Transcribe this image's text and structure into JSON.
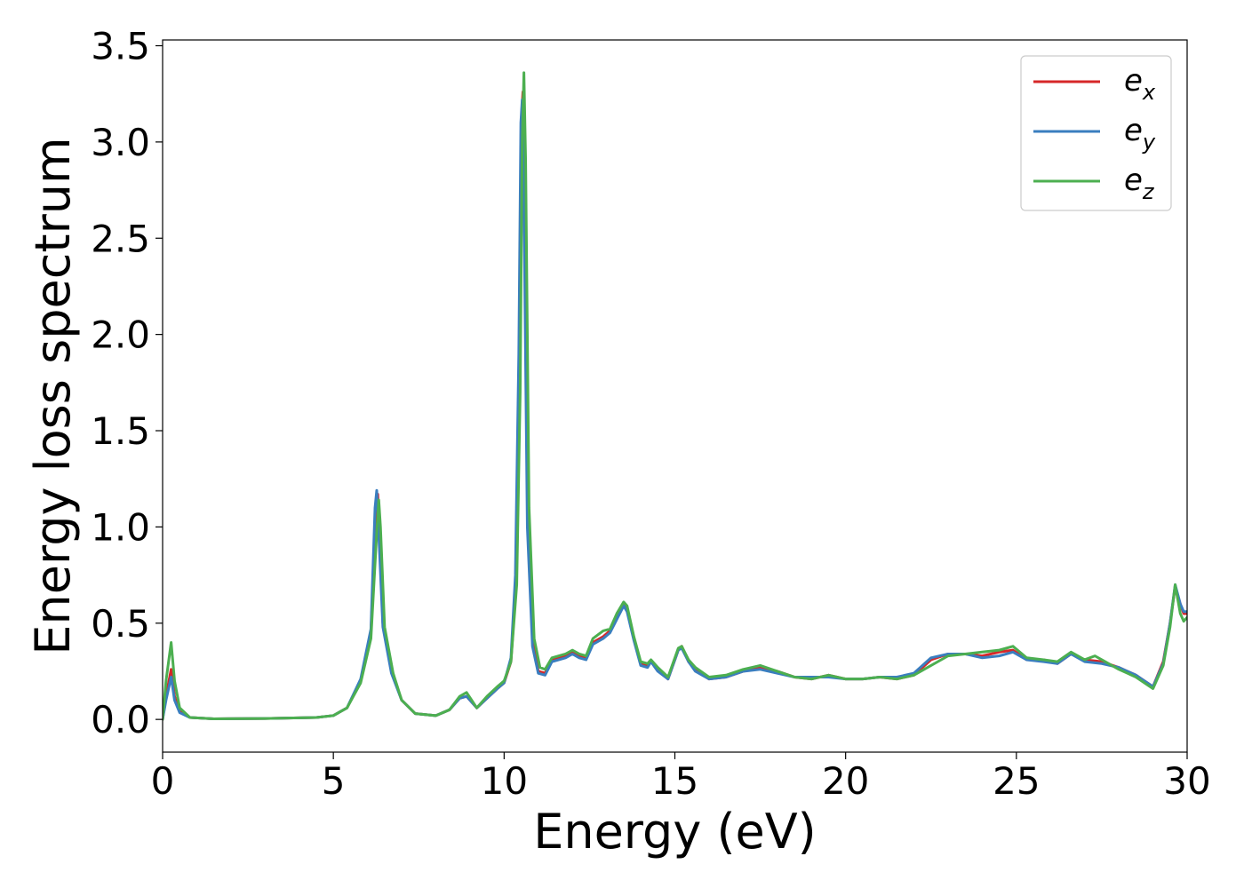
{
  "chart_data": {
    "type": "line",
    "title": "",
    "xlabel": "Energy (eV)",
    "ylabel": "Energy loss spectrum",
    "xlim": [
      0,
      30
    ],
    "ylim": [
      -0.17,
      3.53
    ],
    "xticks": [
      0,
      5,
      10,
      15,
      20,
      25,
      30
    ],
    "xtick_labels": [
      "0",
      "5",
      "10",
      "15",
      "20",
      "25",
      "30"
    ],
    "yticks": [
      0.0,
      0.5,
      1.0,
      1.5,
      2.0,
      2.5,
      3.0,
      3.5
    ],
    "ytick_labels": [
      "0.0",
      "0.5",
      "1.0",
      "1.5",
      "2.0",
      "2.5",
      "3.0",
      "3.5"
    ],
    "grid": false,
    "legend_position": "top-right",
    "series": [
      {
        "name": "e_x",
        "label_base": "e",
        "label_sub": "x",
        "color": "#d62728",
        "points": [
          [
            0,
            0
          ],
          [
            0.1,
            0.12
          ],
          [
            0.25,
            0.26
          ],
          [
            0.35,
            0.12
          ],
          [
            0.5,
            0.04
          ],
          [
            0.8,
            0.01
          ],
          [
            1.5,
            0.003
          ],
          [
            3,
            0.005
          ],
          [
            4.5,
            0.01
          ],
          [
            5.0,
            0.02
          ],
          [
            5.4,
            0.06
          ],
          [
            5.8,
            0.2
          ],
          [
            6.1,
            0.45
          ],
          [
            6.25,
            1.1
          ],
          [
            6.3,
            1.17
          ],
          [
            6.35,
            1.0
          ],
          [
            6.45,
            0.5
          ],
          [
            6.7,
            0.25
          ],
          [
            7.0,
            0.1
          ],
          [
            7.4,
            0.03
          ],
          [
            8.0,
            0.02
          ],
          [
            8.4,
            0.05
          ],
          [
            8.7,
            0.11
          ],
          [
            8.9,
            0.12
          ],
          [
            9.05,
            0.09
          ],
          [
            9.2,
            0.06
          ],
          [
            9.5,
            0.11
          ],
          [
            9.8,
            0.16
          ],
          [
            10.0,
            0.19
          ],
          [
            10.2,
            0.3
          ],
          [
            10.35,
            0.7
          ],
          [
            10.45,
            1.8
          ],
          [
            10.5,
            3.1
          ],
          [
            10.55,
            3.26
          ],
          [
            10.6,
            2.8
          ],
          [
            10.7,
            1.0
          ],
          [
            10.85,
            0.4
          ],
          [
            11.0,
            0.25
          ],
          [
            11.2,
            0.24
          ],
          [
            11.4,
            0.31
          ],
          [
            11.8,
            0.33
          ],
          [
            12.0,
            0.35
          ],
          [
            12.2,
            0.33
          ],
          [
            12.4,
            0.32
          ],
          [
            12.6,
            0.4
          ],
          [
            12.9,
            0.43
          ],
          [
            13.1,
            0.46
          ],
          [
            13.3,
            0.53
          ],
          [
            13.5,
            0.6
          ],
          [
            13.6,
            0.58
          ],
          [
            13.8,
            0.42
          ],
          [
            14.0,
            0.29
          ],
          [
            14.2,
            0.28
          ],
          [
            14.3,
            0.3
          ],
          [
            14.5,
            0.26
          ],
          [
            14.8,
            0.21
          ],
          [
            15.1,
            0.36
          ],
          [
            15.2,
            0.38
          ],
          [
            15.4,
            0.3
          ],
          [
            15.6,
            0.26
          ],
          [
            16.0,
            0.21
          ],
          [
            16.5,
            0.22
          ],
          [
            17.0,
            0.25
          ],
          [
            17.5,
            0.27
          ],
          [
            18.0,
            0.25
          ],
          [
            18.5,
            0.22
          ],
          [
            19.0,
            0.21
          ],
          [
            19.5,
            0.23
          ],
          [
            20.0,
            0.21
          ],
          [
            20.5,
            0.21
          ],
          [
            21.0,
            0.22
          ],
          [
            21.5,
            0.21
          ],
          [
            22.0,
            0.23
          ],
          [
            22.5,
            0.31
          ],
          [
            23.0,
            0.34
          ],
          [
            23.5,
            0.34
          ],
          [
            24.0,
            0.33
          ],
          [
            24.5,
            0.35
          ],
          [
            24.9,
            0.36
          ],
          [
            25.3,
            0.31
          ],
          [
            25.8,
            0.31
          ],
          [
            26.2,
            0.29
          ],
          [
            26.6,
            0.34
          ],
          [
            27.0,
            0.31
          ],
          [
            27.5,
            0.3
          ],
          [
            28.0,
            0.27
          ],
          [
            28.5,
            0.23
          ],
          [
            29.0,
            0.17
          ],
          [
            29.3,
            0.3
          ],
          [
            29.5,
            0.5
          ],
          [
            29.65,
            0.69
          ],
          [
            29.8,
            0.6
          ],
          [
            29.9,
            0.55
          ],
          [
            30.0,
            0.55
          ]
        ]
      },
      {
        "name": "e_y",
        "label_base": "e",
        "label_sub": "y",
        "color": "#3a7ebf",
        "points": [
          [
            0,
            0
          ],
          [
            0.1,
            0.1
          ],
          [
            0.25,
            0.22
          ],
          [
            0.35,
            0.1
          ],
          [
            0.5,
            0.035
          ],
          [
            0.8,
            0.01
          ],
          [
            1.5,
            0.003
          ],
          [
            3,
            0.005
          ],
          [
            4.5,
            0.01
          ],
          [
            5.0,
            0.02
          ],
          [
            5.4,
            0.06
          ],
          [
            5.8,
            0.21
          ],
          [
            6.1,
            0.47
          ],
          [
            6.22,
            1.1
          ],
          [
            6.27,
            1.19
          ],
          [
            6.32,
            1.0
          ],
          [
            6.45,
            0.48
          ],
          [
            6.7,
            0.24
          ],
          [
            7.0,
            0.1
          ],
          [
            7.4,
            0.03
          ],
          [
            8.0,
            0.02
          ],
          [
            8.4,
            0.05
          ],
          [
            8.7,
            0.11
          ],
          [
            8.9,
            0.12
          ],
          [
            9.05,
            0.09
          ],
          [
            9.2,
            0.06
          ],
          [
            9.5,
            0.11
          ],
          [
            9.8,
            0.16
          ],
          [
            10.0,
            0.19
          ],
          [
            10.2,
            0.32
          ],
          [
            10.33,
            0.75
          ],
          [
            10.43,
            1.9
          ],
          [
            10.49,
            3.1
          ],
          [
            10.53,
            3.22
          ],
          [
            10.58,
            2.7
          ],
          [
            10.68,
            1.0
          ],
          [
            10.83,
            0.38
          ],
          [
            11.0,
            0.24
          ],
          [
            11.2,
            0.23
          ],
          [
            11.4,
            0.3
          ],
          [
            11.8,
            0.32
          ],
          [
            12.0,
            0.34
          ],
          [
            12.2,
            0.32
          ],
          [
            12.4,
            0.31
          ],
          [
            12.6,
            0.39
          ],
          [
            12.9,
            0.42
          ],
          [
            13.1,
            0.45
          ],
          [
            13.3,
            0.52
          ],
          [
            13.5,
            0.59
          ],
          [
            13.6,
            0.56
          ],
          [
            13.8,
            0.41
          ],
          [
            14.0,
            0.28
          ],
          [
            14.2,
            0.27
          ],
          [
            14.3,
            0.3
          ],
          [
            14.5,
            0.25
          ],
          [
            14.8,
            0.21
          ],
          [
            15.1,
            0.36
          ],
          [
            15.2,
            0.37
          ],
          [
            15.4,
            0.3
          ],
          [
            15.6,
            0.25
          ],
          [
            16.0,
            0.21
          ],
          [
            16.5,
            0.22
          ],
          [
            17.0,
            0.25
          ],
          [
            17.5,
            0.26
          ],
          [
            18.0,
            0.24
          ],
          [
            18.5,
            0.22
          ],
          [
            19.0,
            0.22
          ],
          [
            19.5,
            0.22
          ],
          [
            20.0,
            0.21
          ],
          [
            20.5,
            0.21
          ],
          [
            21.0,
            0.22
          ],
          [
            21.5,
            0.22
          ],
          [
            22.0,
            0.24
          ],
          [
            22.5,
            0.32
          ],
          [
            23.0,
            0.34
          ],
          [
            23.5,
            0.34
          ],
          [
            24.0,
            0.32
          ],
          [
            24.5,
            0.33
          ],
          [
            24.9,
            0.35
          ],
          [
            25.3,
            0.31
          ],
          [
            25.8,
            0.3
          ],
          [
            26.2,
            0.29
          ],
          [
            26.6,
            0.34
          ],
          [
            27.0,
            0.3
          ],
          [
            27.5,
            0.29
          ],
          [
            28.0,
            0.27
          ],
          [
            28.5,
            0.23
          ],
          [
            29.0,
            0.17
          ],
          [
            29.3,
            0.29
          ],
          [
            29.5,
            0.5
          ],
          [
            29.65,
            0.7
          ],
          [
            29.8,
            0.6
          ],
          [
            29.9,
            0.56
          ],
          [
            30.0,
            0.56
          ]
        ]
      },
      {
        "name": "e_z",
        "label_base": "e",
        "label_sub": "z",
        "color": "#4caf50",
        "points": [
          [
            0,
            0
          ],
          [
            0.1,
            0.2
          ],
          [
            0.25,
            0.4
          ],
          [
            0.35,
            0.2
          ],
          [
            0.5,
            0.06
          ],
          [
            0.8,
            0.01
          ],
          [
            1.5,
            0.003
          ],
          [
            3,
            0.005
          ],
          [
            4.5,
            0.01
          ],
          [
            5.0,
            0.02
          ],
          [
            5.4,
            0.06
          ],
          [
            5.8,
            0.19
          ],
          [
            6.1,
            0.42
          ],
          [
            6.28,
            1.0
          ],
          [
            6.33,
            1.14
          ],
          [
            6.38,
            1.0
          ],
          [
            6.5,
            0.48
          ],
          [
            6.75,
            0.24
          ],
          [
            7.0,
            0.1
          ],
          [
            7.4,
            0.03
          ],
          [
            8.0,
            0.02
          ],
          [
            8.4,
            0.05
          ],
          [
            8.7,
            0.12
          ],
          [
            8.9,
            0.14
          ],
          [
            9.05,
            0.1
          ],
          [
            9.2,
            0.06
          ],
          [
            9.5,
            0.12
          ],
          [
            9.8,
            0.17
          ],
          [
            10.0,
            0.2
          ],
          [
            10.2,
            0.3
          ],
          [
            10.37,
            0.7
          ],
          [
            10.47,
            1.7
          ],
          [
            10.53,
            3.0
          ],
          [
            10.58,
            3.36
          ],
          [
            10.63,
            2.9
          ],
          [
            10.73,
            1.1
          ],
          [
            10.88,
            0.42
          ],
          [
            11.05,
            0.27
          ],
          [
            11.2,
            0.26
          ],
          [
            11.4,
            0.32
          ],
          [
            11.8,
            0.34
          ],
          [
            12.0,
            0.36
          ],
          [
            12.2,
            0.34
          ],
          [
            12.4,
            0.33
          ],
          [
            12.6,
            0.42
          ],
          [
            12.9,
            0.46
          ],
          [
            13.1,
            0.47
          ],
          [
            13.3,
            0.55
          ],
          [
            13.5,
            0.61
          ],
          [
            13.6,
            0.59
          ],
          [
            13.8,
            0.43
          ],
          [
            14.0,
            0.3
          ],
          [
            14.2,
            0.29
          ],
          [
            14.3,
            0.31
          ],
          [
            14.5,
            0.27
          ],
          [
            14.8,
            0.22
          ],
          [
            15.1,
            0.37
          ],
          [
            15.2,
            0.38
          ],
          [
            15.4,
            0.31
          ],
          [
            15.6,
            0.27
          ],
          [
            16.0,
            0.22
          ],
          [
            16.5,
            0.23
          ],
          [
            17.0,
            0.26
          ],
          [
            17.5,
            0.28
          ],
          [
            18.0,
            0.25
          ],
          [
            18.5,
            0.22
          ],
          [
            19.0,
            0.21
          ],
          [
            19.5,
            0.23
          ],
          [
            20.0,
            0.21
          ],
          [
            20.5,
            0.21
          ],
          [
            21.0,
            0.22
          ],
          [
            21.5,
            0.21
          ],
          [
            22.0,
            0.23
          ],
          [
            22.5,
            0.28
          ],
          [
            23.0,
            0.33
          ],
          [
            23.5,
            0.34
          ],
          [
            24.0,
            0.35
          ],
          [
            24.5,
            0.36
          ],
          [
            24.9,
            0.38
          ],
          [
            25.3,
            0.32
          ],
          [
            25.8,
            0.31
          ],
          [
            26.2,
            0.3
          ],
          [
            26.6,
            0.35
          ],
          [
            27.0,
            0.31
          ],
          [
            27.3,
            0.33
          ],
          [
            27.5,
            0.31
          ],
          [
            28.0,
            0.26
          ],
          [
            28.5,
            0.22
          ],
          [
            29.0,
            0.16
          ],
          [
            29.3,
            0.28
          ],
          [
            29.5,
            0.48
          ],
          [
            29.65,
            0.7
          ],
          [
            29.8,
            0.55
          ],
          [
            29.9,
            0.51
          ],
          [
            30.0,
            0.53
          ]
        ]
      }
    ]
  }
}
